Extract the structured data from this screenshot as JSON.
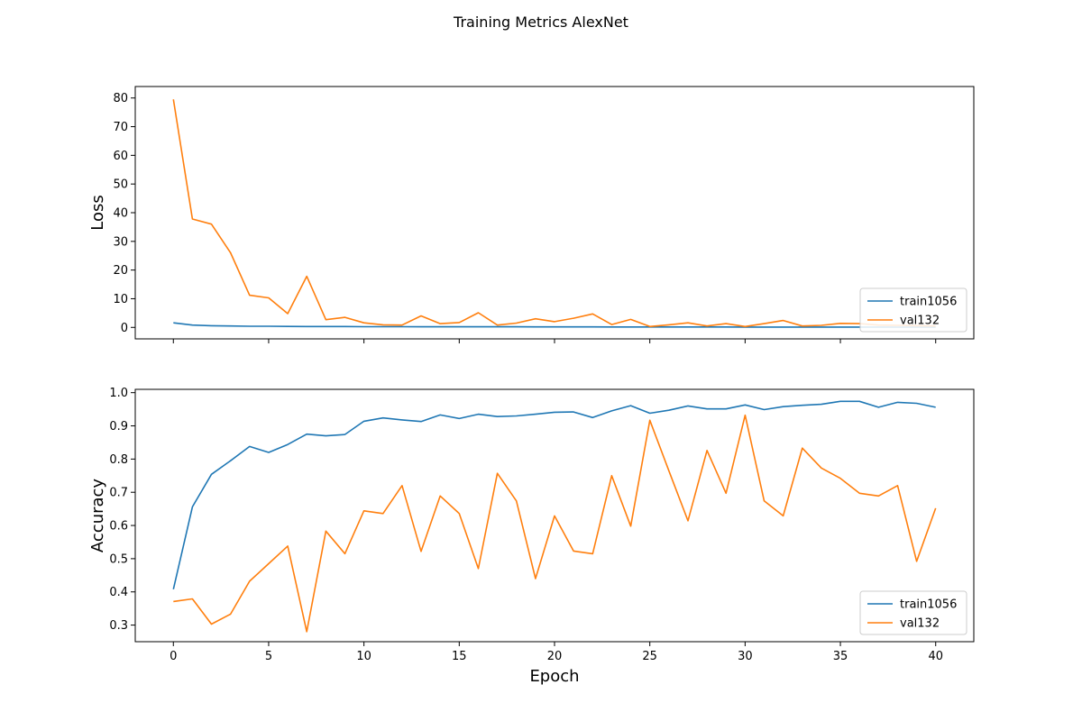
{
  "figure": {
    "suptitle": "Training Metrics AlexNet",
    "colors": {
      "train": "#1f77b4",
      "val": "#ff7f0e"
    }
  },
  "chart_data": [
    {
      "type": "line",
      "title": "",
      "xlabel": "",
      "ylabel": "Loss",
      "xlim": [
        -2,
        42
      ],
      "ylim": [
        -4,
        84
      ],
      "xticks": [
        "0",
        "5",
        "10",
        "15",
        "20",
        "25",
        "30",
        "35",
        "40"
      ],
      "yticks": [
        "0",
        "10",
        "20",
        "30",
        "40",
        "50",
        "60",
        "70",
        "80"
      ],
      "legend_position": "lower-right",
      "x": [
        0,
        1,
        2,
        3,
        4,
        5,
        6,
        7,
        8,
        9,
        10,
        11,
        12,
        13,
        14,
        15,
        16,
        17,
        18,
        19,
        20,
        21,
        22,
        23,
        24,
        25,
        26,
        27,
        28,
        29,
        30,
        31,
        32,
        33,
        34,
        35,
        36,
        37,
        38,
        39,
        40
      ],
      "series": [
        {
          "name": "train1056",
          "color": "#1f77b4",
          "values": [
            1.6,
            0.8,
            0.6,
            0.5,
            0.4,
            0.4,
            0.35,
            0.3,
            0.3,
            0.3,
            0.25,
            0.25,
            0.25,
            0.22,
            0.22,
            0.2,
            0.2,
            0.2,
            0.2,
            0.18,
            0.18,
            0.18,
            0.18,
            0.16,
            0.15,
            0.15,
            0.15,
            0.14,
            0.14,
            0.14,
            0.13,
            0.13,
            0.13,
            0.12,
            0.12,
            0.12,
            0.11,
            0.11,
            0.1,
            0.1,
            0.1
          ]
        },
        {
          "name": "val132",
          "color": "#ff7f0e",
          "values": [
            79.5,
            37.8,
            36.0,
            26.0,
            11.2,
            10.3,
            4.8,
            17.8,
            2.7,
            3.5,
            1.6,
            0.9,
            0.8,
            4.0,
            1.3,
            1.7,
            5.1,
            0.8,
            1.5,
            3.0,
            2.0,
            3.2,
            4.7,
            1.0,
            2.8,
            0.3,
            0.9,
            1.6,
            0.5,
            1.3,
            0.3,
            1.3,
            2.4,
            0.5,
            0.7,
            1.4,
            1.3,
            0.8,
            0.7,
            0.6,
            0.5
          ]
        }
      ]
    },
    {
      "type": "line",
      "title": "",
      "xlabel": "Epoch",
      "ylabel": "Accuracy",
      "xlim": [
        -2,
        42
      ],
      "ylim": [
        0.25,
        1.01
      ],
      "xticks": [
        "0",
        "5",
        "10",
        "15",
        "20",
        "25",
        "30",
        "35",
        "40"
      ],
      "yticks": [
        "0.3",
        "0.4",
        "0.5",
        "0.6",
        "0.7",
        "0.8",
        "0.9",
        "1.0"
      ],
      "legend_position": "lower-right",
      "x": [
        0,
        1,
        2,
        3,
        4,
        5,
        6,
        7,
        8,
        9,
        10,
        11,
        12,
        13,
        14,
        15,
        16,
        17,
        18,
        19,
        20,
        21,
        22,
        23,
        24,
        25,
        26,
        27,
        28,
        29,
        30,
        31,
        32,
        33,
        34,
        35,
        36,
        37,
        38,
        39,
        40
      ],
      "series": [
        {
          "name": "train1056",
          "color": "#1f77b4",
          "values": [
            0.408,
            0.656,
            0.754,
            0.795,
            0.838,
            0.82,
            0.844,
            0.875,
            0.87,
            0.874,
            0.914,
            0.924,
            0.918,
            0.913,
            0.933,
            0.922,
            0.935,
            0.928,
            0.93,
            0.935,
            0.941,
            0.942,
            0.925,
            0.945,
            0.961,
            0.938,
            0.947,
            0.96,
            0.951,
            0.951,
            0.963,
            0.949,
            0.958,
            0.962,
            0.965,
            0.974,
            0.974,
            0.956,
            0.971,
            0.968,
            0.956
          ]
        },
        {
          "name": "val132",
          "color": "#ff7f0e",
          "values": [
            0.371,
            0.379,
            0.303,
            0.333,
            0.432,
            0.485,
            0.538,
            0.28,
            0.583,
            0.515,
            0.644,
            0.636,
            0.72,
            0.522,
            0.689,
            0.636,
            0.47,
            0.757,
            0.674,
            0.44,
            0.629,
            0.523,
            0.515,
            0.75,
            0.598,
            0.917,
            0.765,
            0.614,
            0.826,
            0.697,
            0.932,
            0.674,
            0.629,
            0.833,
            0.773,
            0.742,
            0.697,
            0.689,
            0.72,
            0.492,
            0.652
          ]
        }
      ]
    }
  ]
}
